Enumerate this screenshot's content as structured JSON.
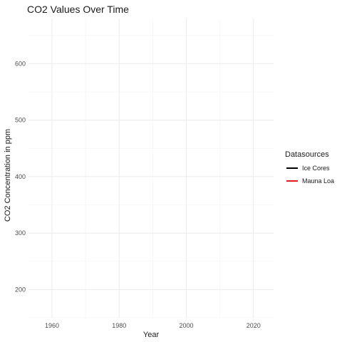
{
  "chart_data": {
    "type": "line",
    "title": "CO2 Values Over Time",
    "xlabel": "Year",
    "ylabel": "CO2 Concentration in ppm",
    "xlim": [
      1953,
      2026
    ],
    "ylim": [
      150,
      680
    ],
    "x_ticks": [
      1960,
      1980,
      2000,
      2020
    ],
    "y_ticks": [
      200,
      300,
      400,
      500,
      600
    ],
    "grid": true,
    "legend": {
      "title": "Datasources",
      "placement": "right"
    },
    "series": [
      {
        "name": "Ice Cores",
        "color": "#000000",
        "x": [],
        "y": []
      },
      {
        "name": "Mauna Loa",
        "color": "#e41a1c",
        "x": [],
        "y": []
      }
    ]
  }
}
